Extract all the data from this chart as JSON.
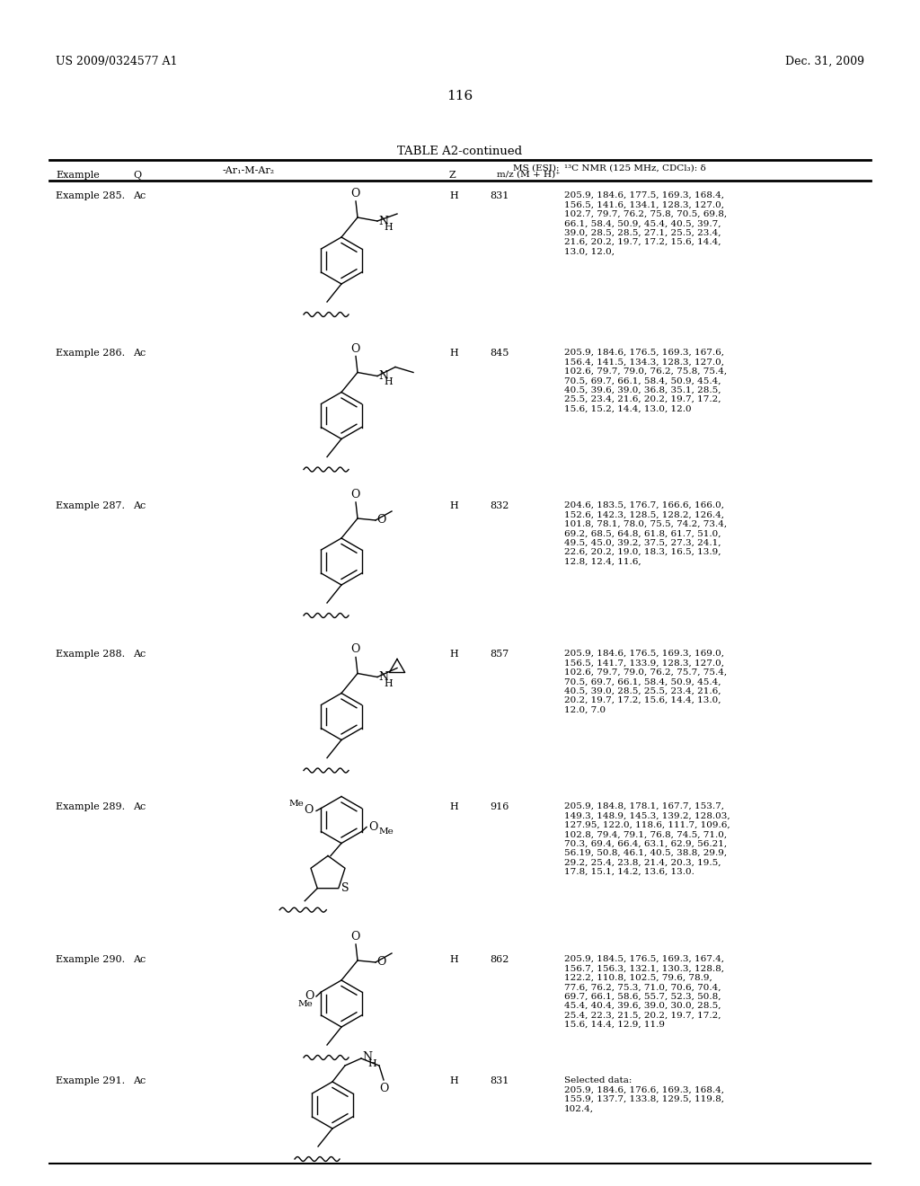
{
  "header_left": "US 2009/0324577 A1",
  "header_right": "Dec. 31, 2009",
  "page_number": "116",
  "table_title": "TABLE A2-continued",
  "examples": [
    {
      "name": "Example 285.",
      "Q": "Ac",
      "Z": "H",
      "ms": "831",
      "nmr": "205.9, 184.6, 177.5, 169.3, 168.4,\n156.5, 141.6, 134.1, 128.3, 127.0,\n102.7, 79.7, 76.2, 75.8, 70.5, 69.8,\n66.1, 58.4, 50.9, 45.4, 40.5, 39.7,\n39.0, 28.5, 28.5, 27.1, 25.5, 23.4,\n21.6, 20.2, 19.7, 17.2, 15.6, 14.4,\n13.0, 12.0,"
    },
    {
      "name": "Example 286.",
      "Q": "Ac",
      "Z": "H",
      "ms": "845",
      "nmr": "205.9, 184.6, 176.5, 169.3, 167.6,\n156.4, 141.5, 134.3, 128.3, 127.0,\n102.6, 79.7, 79.0, 76.2, 75.8, 75.4,\n70.5, 69.7, 66.1, 58.4, 50.9, 45.4,\n40.5, 39.6, 39.0, 36.8, 35.1, 28.5,\n25.5, 23.4, 21.6, 20.2, 19.7, 17.2,\n15.6, 15.2, 14.4, 13.0, 12.0"
    },
    {
      "name": "Example 287.",
      "Q": "Ac",
      "Z": "H",
      "ms": "832",
      "nmr": "204.6, 183.5, 176.7, 166.6, 166.0,\n152.6, 142.3, 128.5, 128.2, 126.4,\n101.8, 78.1, 78.0, 75.5, 74.2, 73.4,\n69.2, 68.5, 64.8, 61.8, 61.7, 51.0,\n49.5, 45.0, 39.2, 37.5, 27.3, 24.1,\n22.6, 20.2, 19.0, 18.3, 16.5, 13.9,\n12.8, 12.4, 11.6,"
    },
    {
      "name": "Example 288.",
      "Q": "Ac",
      "Z": "H",
      "ms": "857",
      "nmr": "205.9, 184.6, 176.5, 169.3, 169.0,\n156.5, 141.7, 133.9, 128.3, 127.0,\n102.6, 79.7, 79.0, 76.2, 75.7, 75.4,\n70.5, 69.7, 66.1, 58.4, 50.9, 45.4,\n40.5, 39.0, 28.5, 25.5, 23.4, 21.6,\n20.2, 19.7, 17.2, 15.6, 14.4, 13.0,\n12.0, 7.0"
    },
    {
      "name": "Example 289.",
      "Q": "Ac",
      "Z": "H",
      "ms": "916",
      "nmr": "205.9, 184.8, 178.1, 167.7, 153.7,\n149.3, 148.9, 145.3, 139.2, 128.03,\n127.95, 122.0, 118.6, 111.7, 109.6,\n102.8, 79.4, 79.1, 76.8, 74.5, 71.0,\n70.3, 69.4, 66.4, 63.1, 62.9, 56.21,\n56.19, 50.8, 46.1, 40.5, 38.8, 29.9,\n29.2, 25.4, 23.8, 21.4, 20.3, 19.5,\n17.8, 15.1, 14.2, 13.6, 13.0."
    },
    {
      "name": "Example 290.",
      "Q": "Ac",
      "Z": "H",
      "ms": "862",
      "nmr": "205.9, 184.5, 176.5, 169.3, 167.4,\n156.7, 156.3, 132.1, 130.3, 128.8,\n122.2, 110.8, 102.5, 79.6, 78.9,\n77.6, 76.2, 75.3, 71.0, 70.6, 70.4,\n69.7, 66.1, 58.6, 55.7, 52.3, 50.8,\n45.4, 40.4, 39.6, 39.0, 30.0, 28.5,\n25.4, 22.3, 21.5, 20.2, 19.7, 17.2,\n15.6, 14.4, 12.9, 11.9"
    },
    {
      "name": "Example 291.",
      "Q": "Ac",
      "Z": "H",
      "ms": "831",
      "nmr": "Selected data:\n205.9, 184.6, 176.6, 169.3, 168.4,\n155.9, 137.7, 133.8, 129.5, 119.8,\n102.4,"
    }
  ]
}
